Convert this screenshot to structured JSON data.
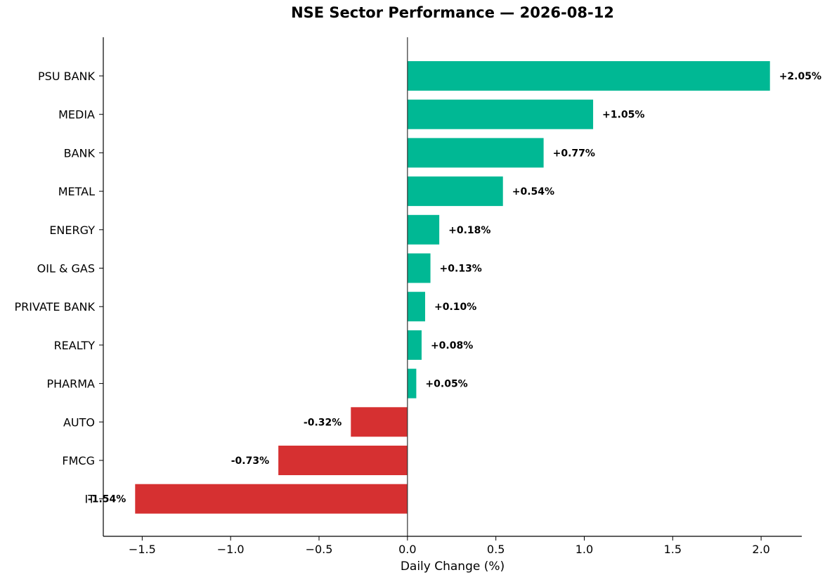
{
  "chart_data": {
    "type": "bar",
    "orientation": "horizontal",
    "title": "NSE Sector Performance — 2026-08-12",
    "xlabel": "Daily Change (%)",
    "ylabel": "",
    "categories": [
      "PSU BANK",
      "MEDIA",
      "BANK",
      "METAL",
      "ENERGY",
      "OIL & GAS",
      "PRIVATE BANK",
      "REALTY",
      "PHARMA",
      "AUTO",
      "FMCG",
      "IT"
    ],
    "values": [
      2.05,
      1.05,
      0.77,
      0.54,
      0.18,
      0.13,
      0.1,
      0.08,
      0.05,
      -0.32,
      -0.73,
      -1.54
    ],
    "data_labels": [
      "+2.05%",
      "+1.05%",
      "+0.77%",
      "+0.54%",
      "+0.18%",
      "+0.13%",
      "+0.10%",
      "+0.08%",
      "+0.05%",
      "-0.32%",
      "-0.73%",
      "-1.54%"
    ],
    "xlim": [
      -1.72,
      2.23
    ],
    "xticks": [
      -1.5,
      -1.0,
      -0.5,
      0.0,
      0.5,
      1.0,
      1.5,
      2.0
    ],
    "xtick_labels": [
      "−1.5",
      "−1.0",
      "−0.5",
      "0.0",
      "0.5",
      "1.0",
      "1.5",
      "2.0"
    ],
    "grid": false,
    "colors": {
      "positive": "#00b894",
      "negative": "#d63031",
      "axis": "#000000",
      "zero_line": "#333333"
    }
  }
}
